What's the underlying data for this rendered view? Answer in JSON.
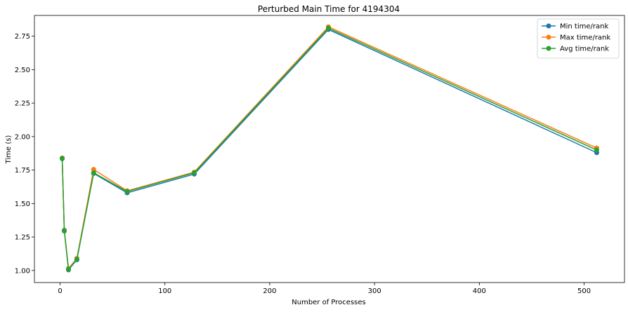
{
  "chart_data": {
    "type": "line",
    "title": "Perturbed Main Time for 4194304",
    "xlabel": "Number of Processes",
    "ylabel": "Time (s)",
    "xlim": [
      -24.5,
      538.5
    ],
    "ylim": [
      0.91,
      2.905
    ],
    "x_ticks": [
      0,
      100,
      200,
      300,
      400,
      500
    ],
    "y_ticks": [
      1.0,
      1.25,
      1.5,
      1.75,
      2.0,
      2.25,
      2.5,
      2.75
    ],
    "y_tick_labels": [
      "1.00",
      "1.25",
      "1.50",
      "1.75",
      "2.00",
      "2.25",
      "2.50",
      "2.75"
    ],
    "grid": false,
    "legend_position": "top-right",
    "markers": "circle",
    "x": [
      2,
      4,
      8,
      16,
      32,
      64,
      128,
      256,
      512
    ],
    "series": [
      {
        "name": "Min time/rank",
        "color": "#1f77b4",
        "values": [
          1.835,
          1.295,
          1.005,
          1.08,
          1.725,
          1.58,
          1.72,
          2.8,
          1.88
        ]
      },
      {
        "name": "Max time/rank",
        "color": "#ff7f0e",
        "values": [
          1.84,
          1.3,
          1.015,
          1.09,
          1.755,
          1.595,
          1.735,
          2.82,
          1.915
        ]
      },
      {
        "name": "Avg time/rank",
        "color": "#2ca02c",
        "values": [
          1.838,
          1.3,
          1.01,
          1.085,
          1.73,
          1.59,
          1.73,
          2.81,
          1.9
        ]
      }
    ]
  }
}
